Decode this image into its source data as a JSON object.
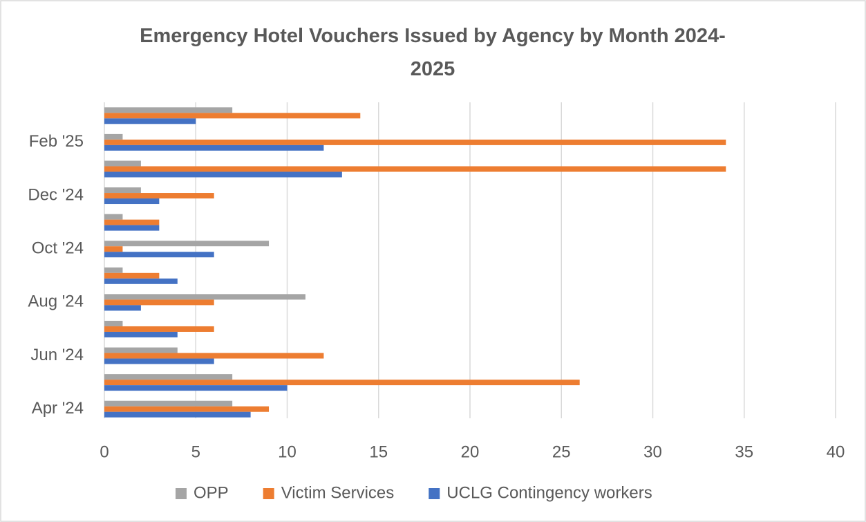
{
  "chart_data": {
    "type": "bar",
    "orientation": "horizontal",
    "title": "Emergency Hotel Vouchers Issued by Agency by Month 2024-2025",
    "categories": [
      "Apr '24",
      null,
      "Jun '24",
      null,
      "Aug '24",
      null,
      "Oct '24",
      null,
      "Dec '24",
      null,
      "Feb '25",
      null
    ],
    "series": [
      {
        "name": "OPP",
        "color": "#a5a5a5",
        "values": [
          7,
          7,
          4,
          1,
          11,
          1,
          9,
          1,
          2,
          2,
          1,
          7
        ]
      },
      {
        "name": "Victim Services",
        "color": "#ed7d31",
        "values": [
          9,
          26,
          12,
          6,
          6,
          3,
          1,
          3,
          6,
          34,
          34,
          14
        ]
      },
      {
        "name": "UCLG Contingency workers",
        "color": "#4472c4",
        "values": [
          8,
          10,
          6,
          4,
          2,
          4,
          6,
          3,
          3,
          13,
          12,
          5
        ]
      }
    ],
    "xlim": [
      0,
      40
    ],
    "xticks": [
      0,
      5,
      10,
      15,
      20,
      25,
      30,
      35,
      40
    ],
    "grid": true,
    "legend": "bottom"
  }
}
